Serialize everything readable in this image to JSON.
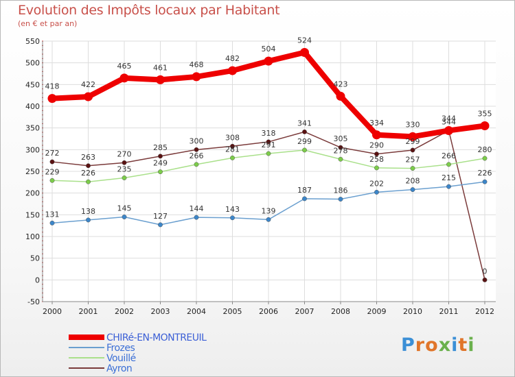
{
  "header": {
    "title": "Evolution des Impôts locaux par Habitant",
    "subtitle": "(en € et par an)"
  },
  "logo": {
    "text": "Proxiti",
    "letters": [
      {
        "ch": "P",
        "color": "#3b8fd6"
      },
      {
        "ch": "r",
        "color": "#e0752a"
      },
      {
        "ch": "o",
        "color": "#e0752a"
      },
      {
        "ch": "x",
        "color": "#6ab04c"
      },
      {
        "ch": "i",
        "color": "#3b8fd6"
      },
      {
        "ch": "t",
        "color": "#e0752a"
      },
      {
        "ch": "i",
        "color": "#6ab04c"
      }
    ]
  },
  "chart_data": {
    "type": "line",
    "title": "Evolution des Impôts locaux par Habitant",
    "subtitle": "(en € et par an)",
    "xlabel": "",
    "ylabel": "",
    "ylim": [
      -50,
      550
    ],
    "yticks": [
      -50,
      0,
      50,
      100,
      150,
      200,
      250,
      300,
      350,
      400,
      450,
      500,
      550
    ],
    "grid": true,
    "legend": "bottom-left",
    "categories": [
      "2000",
      "2001",
      "2002",
      "2003",
      "2004",
      "2005",
      "2006",
      "2007",
      "2008",
      "2009",
      "2010",
      "2011",
      "2012"
    ],
    "series": [
      {
        "name": "CHIRé-EN-MONTREUIL",
        "color": "#ee0000",
        "marker": "#ee0000",
        "values": [
          418,
          422,
          465,
          461,
          468,
          482,
          504,
          524,
          423,
          334,
          330,
          344,
          355
        ]
      },
      {
        "name": "Frozes",
        "color": "#6a9fcf",
        "marker": "#3c86c9",
        "values": [
          131,
          138,
          145,
          127,
          144,
          143,
          139,
          187,
          186,
          202,
          208,
          215,
          226
        ]
      },
      {
        "name": "Vouillé",
        "color": "#a9e08a",
        "marker": "#7ccc4a",
        "values": [
          229,
          226,
          235,
          249,
          266,
          281,
          291,
          299,
          278,
          258,
          257,
          266,
          280
        ]
      },
      {
        "name": "Ayron",
        "color": "#7a3a3a",
        "marker": "#5a1212",
        "values": [
          272,
          263,
          270,
          285,
          300,
          308,
          318,
          341,
          305,
          290,
          299,
          344,
          0
        ]
      }
    ]
  }
}
